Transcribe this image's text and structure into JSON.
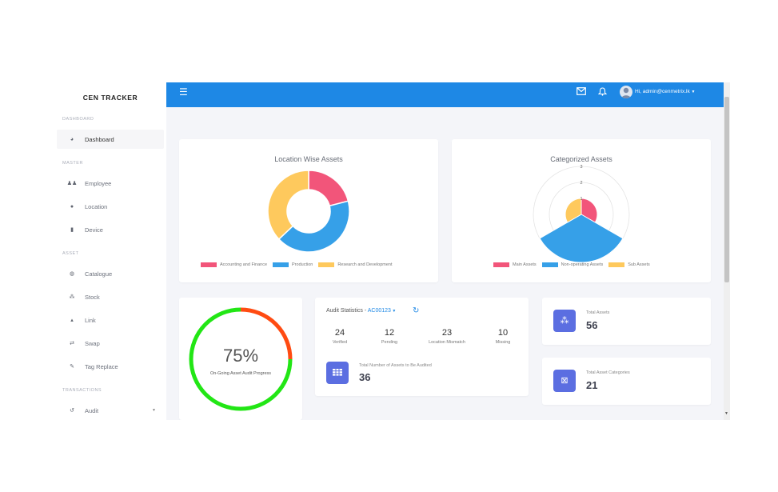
{
  "app": {
    "brand": "CEN TRACKER"
  },
  "sidebar": {
    "sections": [
      {
        "label": "DASHBOARD"
      },
      {
        "label": "MASTER"
      },
      {
        "label": "ASSET"
      },
      {
        "label": "TRANSACTIONS"
      }
    ],
    "items": [
      {
        "label": "Dashboard",
        "icon": "dashboard-icon"
      },
      {
        "label": "Employee",
        "icon": "users-icon"
      },
      {
        "label": "Location",
        "icon": "map-pin-icon"
      },
      {
        "label": "Device",
        "icon": "mobile-icon"
      },
      {
        "label": "Catalogue",
        "icon": "catalogue-icon"
      },
      {
        "label": "Stock",
        "icon": "stock-icon"
      },
      {
        "label": "Link",
        "icon": "link-icon"
      },
      {
        "label": "Swap",
        "icon": "swap-icon"
      },
      {
        "label": "Tag Replace",
        "icon": "edit-icon"
      },
      {
        "label": "Audit",
        "icon": "history-icon"
      }
    ]
  },
  "topbar": {
    "user_label": "Hi, admin@cenmetrix.lk",
    "menu_icon": "hamburger-icon",
    "mail_icon": "mail-icon",
    "bell_icon": "bell-icon"
  },
  "location_assets": {
    "title": "Location Wise Assets",
    "chart_data": {
      "type": "pie",
      "labels": [
        "Accounting and Finance",
        "Production",
        "Research and Development"
      ],
      "values": [
        21,
        42,
        37
      ],
      "colors": [
        "#f2557a",
        "#36a0e8",
        "#fec95d"
      ]
    }
  },
  "categorized_assets": {
    "title": "Categorized Assets",
    "chart_data": {
      "type": "polar-area",
      "labels": [
        "Main Assets",
        "Non-operating Assets",
        "Sub Assets"
      ],
      "values": [
        1,
        3,
        1
      ],
      "colors": [
        "#f2557a",
        "#36a0e8",
        "#fec95d"
      ],
      "r_ticks": [
        "1",
        "2",
        "3"
      ]
    }
  },
  "audit_progress": {
    "percent_label": "75%",
    "caption": "On-Going Asset Audit Progress",
    "progress": 0.75,
    "colors": {
      "done": "#22e615",
      "remaining": "#ff4b12"
    }
  },
  "audit_stats": {
    "title": "Audit Statistics - ",
    "audit_id": "AC00123",
    "refresh_icon": "refresh-icon",
    "stats": [
      {
        "value": "24",
        "label": "Verified"
      },
      {
        "value": "12",
        "label": "Pending"
      },
      {
        "value": "23",
        "label": "Location Mismatch"
      },
      {
        "value": "10",
        "label": "Missing"
      }
    ],
    "total_label": "Total Number of Assets to Be Audited",
    "total_value": "36"
  },
  "kpis": [
    {
      "label": "Total Assets",
      "value": "56",
      "icon": "assets-icon"
    },
    {
      "label": "Total Asset Categories",
      "value": "21",
      "icon": "categories-icon"
    }
  ]
}
